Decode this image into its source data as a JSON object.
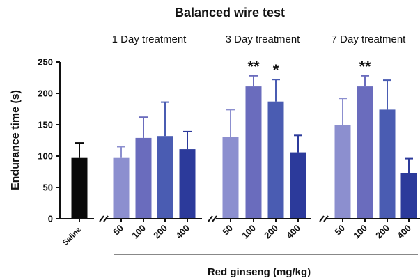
{
  "chart_data": {
    "type": "bar",
    "title": "Balanced wire test",
    "ylabel": "Endurance time (s)",
    "xlabel": "Red ginseng (mg/kg)",
    "ylim": [
      0,
      250
    ],
    "yticks": [
      "0",
      "50",
      "100",
      "150",
      "200",
      "250"
    ],
    "grid": false,
    "groups": [
      {
        "label": "",
        "bars": [
          {
            "category": "Saline",
            "value": 97,
            "error": 24,
            "color": "#0a0a0a",
            "significance": ""
          }
        ]
      },
      {
        "label": "1 Day treatment",
        "bars": [
          {
            "category": "50",
            "value": 97,
            "error": 18,
            "color": "#8c8fcf",
            "significance": ""
          },
          {
            "category": "100",
            "value": 129,
            "error": 33,
            "color": "#6a6cbd",
            "significance": ""
          },
          {
            "category": "200",
            "value": 132,
            "error": 54,
            "color": "#4a5cb2",
            "significance": ""
          },
          {
            "category": "400",
            "value": 111,
            "error": 28,
            "color": "#2c3a9b",
            "significance": ""
          }
        ]
      },
      {
        "label": "3 Day treatment",
        "bars": [
          {
            "category": "50",
            "value": 130,
            "error": 44,
            "color": "#8c8fcf",
            "significance": ""
          },
          {
            "category": "100",
            "value": 211,
            "error": 17,
            "color": "#6a6cbd",
            "significance": "**"
          },
          {
            "category": "200",
            "value": 187,
            "error": 35,
            "color": "#4a5cb2",
            "significance": "*"
          },
          {
            "category": "400",
            "value": 106,
            "error": 27,
            "color": "#2c3a9b",
            "significance": ""
          }
        ]
      },
      {
        "label": "7 Day treatment",
        "bars": [
          {
            "category": "50",
            "value": 150,
            "error": 42,
            "color": "#8c8fcf",
            "significance": ""
          },
          {
            "category": "100",
            "value": 211,
            "error": 17,
            "color": "#6a6cbd",
            "significance": "**"
          },
          {
            "category": "200",
            "value": 174,
            "error": 47,
            "color": "#4a5cb2",
            "significance": ""
          },
          {
            "category": "400",
            "value": 73,
            "error": 23,
            "color": "#2c3a9b",
            "significance": ""
          }
        ]
      }
    ]
  }
}
